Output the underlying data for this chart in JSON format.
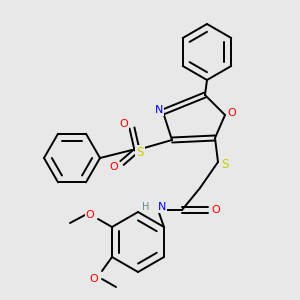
{
  "bg_color": "#e8e8e8",
  "bond_color": "#000000",
  "atom_colors": {
    "N": "#0000ff",
    "O": "#ff0000",
    "S": "#cccc00",
    "H": "#5a9090",
    "C": "#000000"
  },
  "line_width": 1.4,
  "fig_size": [
    3.0,
    3.0
  ],
  "dpi": 100
}
